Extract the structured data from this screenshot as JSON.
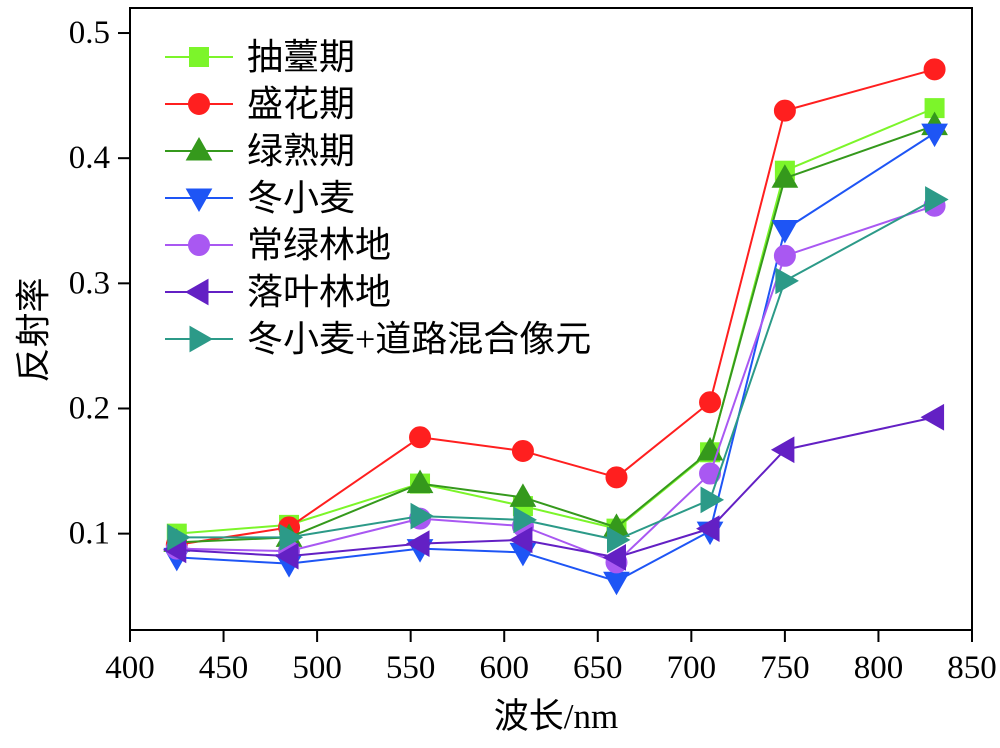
{
  "chart_data": {
    "type": "line",
    "title": "",
    "xlabel": "波长/nm",
    "ylabel": "反射率",
    "xlim": [
      400,
      850
    ],
    "ylim": [
      0.023,
      0.52
    ],
    "xtick_labels": [
      "400",
      "450",
      "500",
      "550",
      "600",
      "650",
      "700",
      "750",
      "800",
      "850"
    ],
    "ytick_labels": [
      "0.1",
      "0.2",
      "0.3",
      "0.4",
      "0.5"
    ],
    "grid": false,
    "legend_position": "top-left",
    "x": [
      425,
      485,
      555,
      610,
      660,
      710,
      750,
      830
    ],
    "series": [
      {
        "name": "抽薹期",
        "color": "#7CF52A",
        "marker": "square",
        "values": [
          0.1,
          0.107,
          0.14,
          0.122,
          0.104,
          0.165,
          0.39,
          0.44
        ]
      },
      {
        "name": "盛花期",
        "color": "#FF1F1F",
        "marker": "circle",
        "values": [
          0.091,
          0.105,
          0.177,
          0.166,
          0.145,
          0.205,
          0.438,
          0.471
        ]
      },
      {
        "name": "绿熟期",
        "color": "#35991C",
        "marker": "triangle-up",
        "values": [
          0.093,
          0.097,
          0.14,
          0.129,
          0.105,
          0.166,
          0.384,
          0.426
        ]
      },
      {
        "name": "冬小麦",
        "color": "#1E55F5",
        "marker": "triangle-down",
        "values": [
          0.081,
          0.076,
          0.088,
          0.085,
          0.062,
          0.102,
          0.343,
          0.42
        ]
      },
      {
        "name": "常绿林地",
        "color": "#A958F2",
        "marker": "circle",
        "values": [
          0.088,
          0.086,
          0.112,
          0.106,
          0.077,
          0.148,
          0.322,
          0.362
        ]
      },
      {
        "name": "落叶林地",
        "color": "#6320C4",
        "marker": "triangle-left",
        "values": [
          0.087,
          0.082,
          0.092,
          0.095,
          0.081,
          0.104,
          0.167,
          0.193
        ]
      },
      {
        "name": "冬小麦+道路混合像元",
        "color": "#2C9A88",
        "marker": "triangle-right",
        "values": [
          0.097,
          0.097,
          0.114,
          0.111,
          0.095,
          0.127,
          0.302,
          0.367
        ]
      }
    ]
  }
}
